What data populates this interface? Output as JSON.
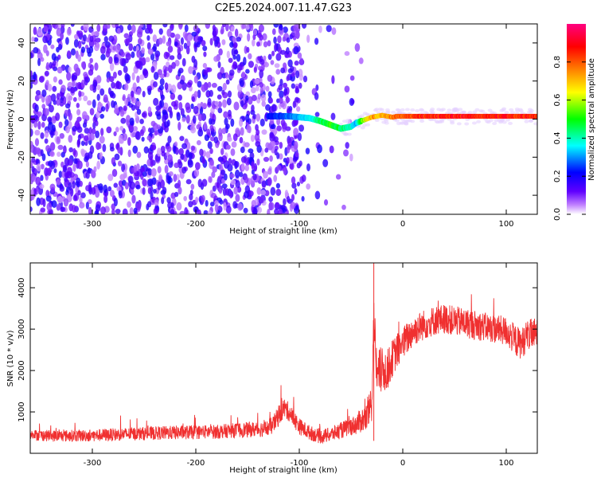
{
  "figure_title": "C2E5.2024.007.11.47.G23",
  "chart_data": [
    {
      "type": "heatmap",
      "title": "C2E5.2024.007.11.47.G23",
      "xlabel": "Height of straight line (km)",
      "ylabel": "Frequency (Hz)",
      "xlim": [
        -360,
        130
      ],
      "ylim": [
        -50,
        50
      ],
      "xticks": [
        -300,
        -200,
        -100,
        0,
        100
      ],
      "xtick_labels": [
        "-300",
        "-200",
        "-100",
        "0",
        "100"
      ],
      "yticks": [
        -40,
        -20,
        0,
        20,
        40
      ],
      "ytick_labels": [
        "-40",
        "-20",
        "0",
        "20",
        "40"
      ],
      "colorbar": {
        "label": "Normalized spectral amplitude",
        "range": [
          0,
          1
        ],
        "ticks": [
          0.0,
          0.2,
          0.4,
          0.6,
          0.8
        ],
        "tick_labels": [
          "0.0",
          "0.2",
          "0.4",
          "0.6",
          "0.8"
        ],
        "colors": [
          "#ffffff",
          "#c080ff",
          "#6000ff",
          "#0000ff",
          "#00ffff",
          "#00ff00",
          "#ffff00",
          "#ff8000",
          "#ff0000",
          "#ff0080"
        ]
      },
      "noise_region": {
        "x_range": [
          -360,
          -40
        ],
        "freq_range": [
          -50,
          50
        ],
        "typical_amplitude": 0.15
      },
      "signal_trace": {
        "x": [
          -130,
          -110,
          -90,
          -80,
          -70,
          -60,
          -50,
          -45,
          -40,
          -35,
          -30,
          -25,
          -20,
          -15,
          -10,
          -5,
          0,
          10,
          20,
          40,
          60,
          80,
          100,
          120,
          130
        ],
        "freq": [
          1.5,
          1.5,
          0.5,
          -1,
          -3,
          -5,
          -4,
          -2,
          -1,
          0,
          1,
          1.5,
          2,
          1.5,
          1,
          1.5,
          1.5,
          1.5,
          1.5,
          1.5,
          1.5,
          1.5,
          1.5,
          1.5,
          1.5
        ],
        "amplitude": [
          0.22,
          0.28,
          0.35,
          0.45,
          0.5,
          0.45,
          0.4,
          0.3,
          0.5,
          0.65,
          0.7,
          0.72,
          0.72,
          0.74,
          0.75,
          0.78,
          0.8,
          0.82,
          0.85,
          0.87,
          0.87,
          0.86,
          0.87,
          0.85,
          0.85
        ]
      }
    },
    {
      "type": "line",
      "xlabel": "Height of straight line (km)",
      "ylabel": "SNR (10 * v/v)",
      "xlim": [
        -360,
        130
      ],
      "ylim": [
        0,
        4600
      ],
      "xticks": [
        -300,
        -200,
        -100,
        0,
        100
      ],
      "xtick_labels": [
        "-300",
        "-200",
        "-100",
        "0",
        "100"
      ],
      "yticks": [
        1000,
        2000,
        3000,
        4000
      ],
      "ytick_labels": [
        "1000",
        "2000",
        "3000",
        "4000"
      ],
      "color": "#f03030",
      "series": [
        {
          "name": "SNR",
          "x": [
            -360,
            -340,
            -300,
            -260,
            -220,
            -180,
            -160,
            -140,
            -130,
            -125,
            -120,
            -115,
            -110,
            -100,
            -90,
            -80,
            -70,
            -60,
            -50,
            -45,
            -40,
            -35,
            -30,
            -28,
            -25,
            -20,
            -15,
            -10,
            -5,
            0,
            5,
            10,
            20,
            30,
            40,
            50,
            60,
            70,
            80,
            90,
            100,
            110,
            115,
            120,
            130
          ],
          "y": [
            450,
            420,
            430,
            470,
            500,
            520,
            560,
            580,
            600,
            700,
            900,
            1100,
            1000,
            650,
            500,
            400,
            450,
            550,
            650,
            700,
            800,
            850,
            1200,
            3300,
            1900,
            2000,
            2000,
            2300,
            2500,
            2650,
            2800,
            2950,
            3100,
            3200,
            3250,
            3200,
            3150,
            3100,
            3050,
            3000,
            2950,
            2700,
            2650,
            2850,
            2900
          ],
          "spread": [
            130,
            140,
            150,
            160,
            170,
            170,
            180,
            190,
            200,
            220,
            250,
            250,
            230,
            200,
            180,
            170,
            180,
            200,
            220,
            250,
            300,
            350,
            450,
            600,
            600,
            550,
            500,
            450,
            420,
            400,
            400,
            380,
            370,
            360,
            360,
            360,
            360,
            360,
            350,
            350,
            360,
            380,
            380,
            380,
            380
          ]
        }
      ]
    }
  ]
}
